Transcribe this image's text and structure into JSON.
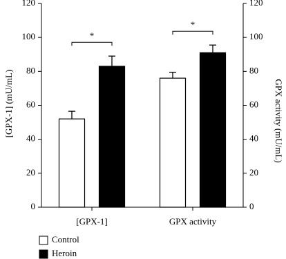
{
  "chart_data": {
    "type": "bar",
    "categories": [
      "[GPX-1]",
      "GPX activity"
    ],
    "series": [
      {
        "name": "Control",
        "color": "#ffffff",
        "values": [
          52,
          76
        ],
        "errors": [
          4.5,
          3.5
        ]
      },
      {
        "name": "Heroin",
        "color": "#000000",
        "values": [
          83,
          91
        ],
        "errors": [
          6,
          4.5
        ]
      }
    ],
    "ylabel": "[GPX-1] (mU/mL)",
    "y2label": "GPX activity (mU/mL)",
    "ylim": [
      0,
      120
    ],
    "yticks": [
      0,
      20,
      40,
      60,
      80,
      100,
      120
    ],
    "y2lim": [
      0,
      120
    ],
    "y2ticks": [
      0,
      20,
      40,
      60,
      80,
      100,
      120
    ],
    "annotations": [
      "*",
      "*"
    ],
    "legend": "bottom-left"
  }
}
